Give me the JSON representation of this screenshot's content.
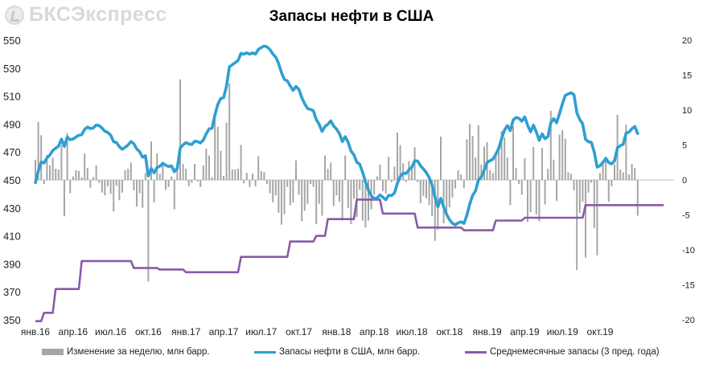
{
  "logo": {
    "text": "БКСЭкспресс"
  },
  "chart_data": {
    "type": "bar+line",
    "title": "Запасы нефти в США",
    "x_tick_labels": [
      "янв.16",
      "апр.16",
      "июл.16",
      "окт.16",
      "янв.17",
      "апр.17",
      "июл.17",
      "окт.17",
      "янв.18",
      "апр.18",
      "июл.18",
      "окт.18",
      "янв.19",
      "апр.19",
      "июл.19",
      "окт.19"
    ],
    "weeks_per_month_tick": 13,
    "y_left": {
      "min": 350,
      "max": 550,
      "step": 20,
      "ticks": [
        "550",
        "530",
        "510",
        "490",
        "470",
        "450",
        "430",
        "410",
        "390",
        "370",
        "350"
      ]
    },
    "y_right": {
      "min": -20,
      "max": 20,
      "step": 5,
      "ticks": [
        "20",
        "15",
        "10",
        "5",
        "0",
        "-5",
        "-10",
        "-15",
        "-20"
      ]
    },
    "colors": {
      "weekly_change": "#a6a6a6",
      "stocks": "#2e9fd1",
      "avg": "#8a5aa7"
    },
    "legend": [
      {
        "label": "Изменение за неделю, млн барр.",
        "kind": "bar"
      },
      {
        "label": "Запасы нефти в США, млн барр.",
        "kind": "line"
      },
      {
        "label": "Среднемесячные запасы (3 пред. года)",
        "kind": "line"
      }
    ],
    "series": [
      {
        "name": "Изменение за неделю, млн барр.",
        "axis": "right",
        "type": "bar",
        "values": [
          2.9,
          8.3,
          6.4,
          -0.6,
          3.6,
          2.1,
          3.2,
          1.6,
          1.5,
          5.0,
          -5.2,
          6.7,
          -1.9,
          0.5,
          1.4,
          1.3,
          0.4,
          3.8,
          1.7,
          -1.1,
          0.4,
          2.1,
          -0.4,
          -1.8,
          -2.2,
          -0.9,
          -2.0,
          -4.5,
          -0.8,
          -2.9,
          -1.8,
          1.4,
          1.6,
          2.5,
          -1.5,
          -3.8,
          -1.9,
          -4.0,
          1.0,
          -14.5,
          5.5,
          -3.2,
          3.8,
          0.9,
          2.2,
          -1.4,
          -1.0,
          0.5,
          -4.2,
          2.5,
          14.4,
          2.3,
          1.6,
          -0.9,
          -0.4,
          2.3,
          -0.2,
          -1.0,
          2.1,
          4.5,
          3.5,
          0.4,
          9.5,
          7.6,
          4.2,
          0.6,
          8.2,
          13.8,
          1.5,
          1.5,
          1.6,
          5.0,
          -0.5,
          1.0,
          -1.0,
          0.9,
          -0.9,
          3.4,
          1.3,
          1.1,
          -0.6,
          -1.9,
          -3.2,
          -2.2,
          -4.7,
          -6.4,
          -4.9,
          -1.0,
          -3.6,
          -3.2,
          2.8,
          -2.1,
          -5.9,
          -4.4,
          -3.4,
          -0.6,
          -1.0,
          -6.3,
          -3.4,
          -5.1,
          3.5,
          1.6,
          2.5,
          -3.7,
          -2.2,
          -3.1,
          -5.8,
          3.5,
          -4.0,
          -6.3,
          -2.7,
          -5.3,
          -1.4,
          -5.8,
          -6.8,
          -5.8,
          -4.2,
          -2.1,
          0.5,
          2.2,
          -1.6,
          -1.9,
          3.3,
          -0.3,
          1.9,
          6.8,
          5.0,
          2.4,
          -0.3,
          2.7,
          1.8,
          4.7,
          -0.3,
          -3.3,
          -2.3,
          -2.6,
          -3.6,
          -5.2,
          -8.7,
          -7.1,
          6.2,
          -6.2,
          -5.2,
          -3.9,
          -2.5,
          -1.2,
          1.4,
          0.8,
          -1.2,
          5.8,
          8.0,
          6.3,
          3.2,
          7.8,
          2.2,
          4.8,
          5.4,
          1.4,
          1.0,
          3.6,
          4.2,
          7.0,
          6.1,
          3.2,
          -3.6,
          7.7,
          1.7,
          -0.6,
          -2.1,
          3.1,
          -6.0,
          -4.6,
          4.7,
          -4.9,
          -5.9,
          4.6,
          -3.5,
          1.6,
          9.9,
          2.9,
          -3.0,
          6.5,
          7.1,
          5.9,
          1.1,
          0.9,
          -1.5,
          -12.9,
          -4.7,
          -3.1,
          -11.1,
          -1.8,
          -0.4,
          -6.9,
          -10.8,
          1.0,
          2.4,
          2.9,
          -3.1,
          -0.9,
          2.2,
          9.3,
          1.5,
          1.1,
          7.9,
          0.8,
          2.3,
          1.7,
          -5.1
        ]
      },
      {
        "name": "Запасы нефти в США, млн барр.",
        "axis": "left",
        "type": "line",
        "values": [
          448.1,
          456.4,
          462.8,
          462.2,
          465.8,
          467.9,
          471.1,
          472.7,
          474.2,
          479.2,
          474.0,
          480.7,
          478.8,
          479.3,
          480.7,
          482.0,
          482.4,
          486.2,
          487.9,
          486.8,
          487.2,
          489.3,
          488.9,
          487.1,
          484.9,
          484.0,
          482.0,
          477.5,
          476.7,
          473.8,
          472.0,
          473.4,
          475.0,
          477.5,
          476.0,
          472.2,
          470.3,
          466.3,
          467.3,
          452.8,
          458.3,
          455.1,
          458.9,
          459.8,
          462.0,
          460.6,
          459.6,
          460.1,
          455.9,
          458.4,
          472.8,
          475.1,
          476.7,
          475.8,
          475.4,
          477.7,
          477.5,
          476.5,
          478.6,
          483.1,
          486.6,
          487.0,
          496.5,
          504.1,
          508.3,
          508.9,
          517.1,
          530.9,
          532.4,
          533.9,
          535.5,
          540.5,
          540.0,
          541.0,
          540.0,
          540.9,
          540.0,
          543.4,
          544.7,
          545.8,
          545.2,
          543.3,
          540.1,
          537.9,
          533.2,
          526.8,
          521.9,
          520.9,
          517.3,
          514.1,
          516.9,
          514.8,
          508.9,
          504.5,
          501.1,
          500.5,
          499.5,
          493.2,
          489.8,
          484.7,
          488.2,
          489.8,
          492.3,
          488.6,
          486.4,
          483.3,
          477.5,
          481.0,
          477.0,
          470.7,
          468.0,
          462.7,
          461.3,
          455.5,
          448.7,
          442.9,
          438.7,
          436.6,
          437.1,
          439.3,
          437.7,
          435.8,
          439.1,
          438.8,
          440.7,
          447.5,
          452.5,
          454.9,
          454.6,
          457.3,
          459.1,
          463.8,
          463.5,
          460.2,
          457.9,
          455.3,
          451.7,
          446.5,
          437.8,
          430.7,
          436.9,
          430.7,
          425.5,
          421.6,
          419.1,
          417.9,
          419.3,
          420.1,
          418.9,
          424.7,
          432.7,
          439.0,
          442.2,
          450.0,
          452.2,
          457.0,
          462.4,
          463.8,
          464.8,
          468.4,
          472.6,
          479.6,
          485.7,
          488.9,
          485.3,
          493.0,
          494.7,
          494.1,
          492.0,
          495.1,
          489.1,
          484.5,
          489.2,
          484.3,
          478.4,
          483.0,
          479.5,
          481.1,
          491.0,
          493.9,
          490.9,
          497.4,
          504.5,
          510.4,
          511.5,
          512.4,
          510.9,
          498.0,
          493.3,
          490.2,
          479.1,
          477.3,
          476.9,
          470.0,
          459.2,
          460.2,
          462.6,
          465.5,
          462.4,
          461.5,
          463.7,
          473.0,
          474.5,
          475.6,
          483.5,
          484.3,
          486.6,
          488.3,
          483.2
        ]
      },
      {
        "name": "Среднемесячные запасы (3 пред. года)",
        "axis": "left",
        "type": "step-line",
        "values": [
          349.0,
          349.0,
          349.0,
          355.0,
          355.0,
          355.0,
          355.0,
          372.0,
          372.0,
          372.0,
          372.0,
          372.0,
          372.0,
          372.0,
          372.0,
          372.0,
          392.0,
          392.0,
          392.0,
          392.0,
          392.0,
          392.0,
          392.0,
          392.0,
          392.0,
          392.0,
          392.0,
          392.0,
          392.0,
          392.0,
          392.0,
          392.0,
          392.0,
          392.0,
          387.0,
          387.0,
          387.0,
          387.0,
          387.0,
          387.0,
          387.0,
          387.0,
          387.0,
          386.0,
          386.0,
          386.0,
          386.0,
          386.0,
          386.0,
          386.0,
          386.0,
          386.0,
          384.0,
          384.0,
          384.0,
          384.0,
          384.0,
          384.0,
          384.0,
          384.0,
          384.0,
          384.0,
          384.0,
          384.0,
          384.0,
          384.0,
          384.0,
          384.0,
          384.0,
          384.0,
          384.0,
          395.0,
          395.0,
          395.0,
          395.0,
          395.0,
          395.0,
          395.0,
          395.0,
          395.0,
          395.0,
          395.0,
          395.0,
          395.0,
          395.0,
          395.0,
          395.0,
          395.0,
          406.0,
          406.0,
          406.0,
          406.0,
          406.0,
          406.0,
          406.0,
          406.0,
          406.0,
          410.0,
          410.0,
          410.0,
          410.0,
          422.0,
          422.0,
          422.0,
          422.0,
          422.0,
          422.0,
          422.0,
          422.0,
          422.0,
          422.0,
          436.0,
          436.0,
          436.0,
          436.0,
          436.0,
          436.0,
          436.0,
          436.0,
          436.0,
          426.0,
          426.0,
          426.0,
          426.0,
          426.0,
          426.0,
          426.0,
          426.0,
          426.0,
          426.0,
          426.0,
          426.0,
          416.0,
          416.0,
          416.0,
          416.0,
          416.0,
          416.0,
          416.0,
          416.0,
          416.0,
          416.0,
          416.0,
          416.0,
          416.0,
          416.0,
          416.0,
          416.0,
          414.0,
          414.0,
          414.0,
          414.0,
          414.0,
          414.0,
          414.0,
          414.0,
          414.0,
          414.0,
          414.0,
          421.0,
          421.0,
          421.0,
          421.0,
          421.0,
          421.0,
          421.0,
          421.0,
          421.0,
          421.0,
          423.0,
          423.0,
          423.0,
          423.0,
          423.0,
          423.0,
          423.0,
          423.0,
          423.0,
          423.0,
          423.0,
          423.0,
          423.0,
          423.0,
          423.0,
          423.0,
          423.0,
          423.0,
          423.0,
          423.0,
          423.0,
          432.0,
          432.0,
          432.0,
          432.0,
          432.0,
          432.0,
          432.0,
          432.0,
          432.0,
          432.0,
          432.0,
          432.0,
          432.0,
          432.0,
          432.0,
          432.0,
          432.0,
          432.0,
          432.0,
          432.0,
          432.0,
          432.0,
          432.0,
          432.0,
          432.0,
          432.0,
          432.0,
          432.0
        ]
      }
    ]
  }
}
